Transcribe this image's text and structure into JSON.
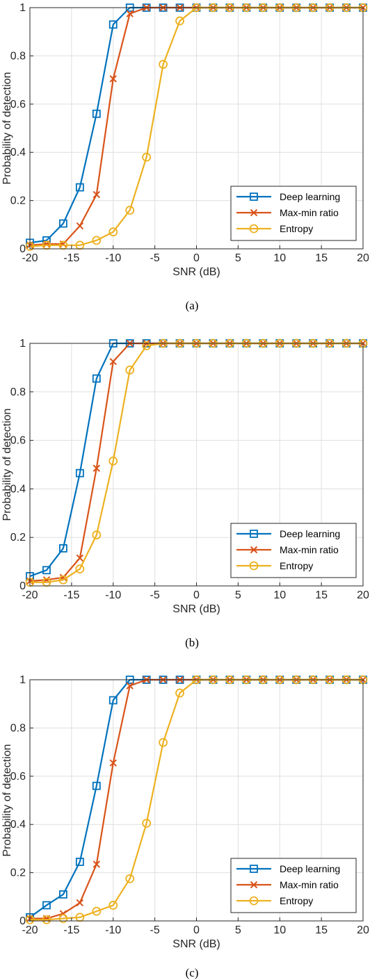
{
  "chart_data": [
    {
      "type": "line",
      "caption": "(a)",
      "xlabel": "SNR (dB)",
      "ylabel": "Probability of detection",
      "xlim": [
        -20,
        20
      ],
      "ylim": [
        0,
        1
      ],
      "grid": true,
      "legend_position": "bottom-right",
      "xticks": [
        -20,
        -15,
        -10,
        -5,
        0,
        5,
        10,
        15,
        20
      ],
      "xtick_labels": [
        "-20",
        "-15",
        "-10",
        "-5",
        "0",
        "5",
        "10",
        "15",
        "20"
      ],
      "yticks": [
        0,
        0.2,
        0.4,
        0.6,
        0.8,
        1
      ],
      "ytick_labels": [
        "0",
        "0.2",
        "0.4",
        "0.6",
        "0.8",
        "1"
      ],
      "x": [
        -20,
        -18,
        -16,
        -14,
        -12,
        -10,
        -8,
        -6,
        -4,
        -2,
        0,
        2,
        4,
        6,
        8,
        10,
        12,
        14,
        16,
        18,
        20
      ],
      "series": [
        {
          "name": "Deep learning",
          "marker": "square",
          "color": "#0072BD",
          "values": [
            0.025,
            0.035,
            0.105,
            0.255,
            0.56,
            0.93,
            1.0,
            1.0,
            1.0,
            1.0,
            1.0,
            1.0,
            1.0,
            1.0,
            1.0,
            1.0,
            1.0,
            1.0,
            1.0,
            1.0,
            1.0
          ]
        },
        {
          "name": "Max-min ratio",
          "marker": "x",
          "color": "#D95319",
          "values": [
            0.015,
            0.02,
            0.02,
            0.095,
            0.225,
            0.705,
            0.975,
            1.0,
            1.0,
            1.0,
            1.0,
            1.0,
            1.0,
            1.0,
            1.0,
            1.0,
            1.0,
            1.0,
            1.0,
            1.0,
            1.0
          ]
        },
        {
          "name": "Entropy",
          "marker": "circle",
          "color": "#EDB120",
          "values": [
            0.01,
            0.015,
            0.015,
            0.015,
            0.035,
            0.07,
            0.16,
            0.38,
            0.765,
            0.945,
            1.0,
            1.0,
            1.0,
            1.0,
            1.0,
            1.0,
            1.0,
            1.0,
            1.0,
            1.0,
            1.0
          ]
        }
      ]
    },
    {
      "type": "line",
      "caption": "(b)",
      "xlabel": "SNR (dB)",
      "ylabel": "Probability of detection",
      "xlim": [
        -20,
        20
      ],
      "ylim": [
        0,
        1
      ],
      "grid": true,
      "legend_position": "bottom-right",
      "xticks": [
        -20,
        -15,
        -10,
        -5,
        0,
        5,
        10,
        15,
        20
      ],
      "xtick_labels": [
        "-20",
        "-15",
        "-10",
        "-5",
        "0",
        "5",
        "10",
        "15",
        "20"
      ],
      "yticks": [
        0,
        0.2,
        0.4,
        0.6,
        0.8,
        1
      ],
      "ytick_labels": [
        "0",
        "0.2",
        "0.4",
        "0.6",
        "0.8",
        "1"
      ],
      "x": [
        -20,
        -18,
        -16,
        -14,
        -12,
        -10,
        -8,
        -6,
        -4,
        -2,
        0,
        2,
        4,
        6,
        8,
        10,
        12,
        14,
        16,
        18,
        20
      ],
      "series": [
        {
          "name": "Deep learning",
          "marker": "square",
          "color": "#0072BD",
          "values": [
            0.04,
            0.065,
            0.155,
            0.465,
            0.855,
            1.0,
            1.0,
            1.0,
            1.0,
            1.0,
            1.0,
            1.0,
            1.0,
            1.0,
            1.0,
            1.0,
            1.0,
            1.0,
            1.0,
            1.0,
            1.0
          ]
        },
        {
          "name": "Max-min ratio",
          "marker": "x",
          "color": "#D95319",
          "values": [
            0.02,
            0.025,
            0.035,
            0.115,
            0.485,
            0.925,
            1.0,
            1.0,
            1.0,
            1.0,
            1.0,
            1.0,
            1.0,
            1.0,
            1.0,
            1.0,
            1.0,
            1.0,
            1.0,
            1.0,
            1.0
          ]
        },
        {
          "name": "Entropy",
          "marker": "circle",
          "color": "#EDB120",
          "values": [
            0.015,
            0.015,
            0.025,
            0.07,
            0.21,
            0.515,
            0.89,
            0.99,
            1.0,
            1.0,
            1.0,
            1.0,
            1.0,
            1.0,
            1.0,
            1.0,
            1.0,
            1.0,
            1.0,
            1.0,
            1.0
          ]
        }
      ]
    },
    {
      "type": "line",
      "caption": "(c)",
      "xlabel": "SNR (dB)",
      "ylabel": "Probability of detection",
      "xlim": [
        -20,
        20
      ],
      "ylim": [
        0,
        1
      ],
      "grid": true,
      "legend_position": "bottom-right",
      "xticks": [
        -20,
        -15,
        -10,
        -5,
        0,
        5,
        10,
        15,
        20
      ],
      "xtick_labels": [
        "-20",
        "-15",
        "-10",
        "-5",
        "0",
        "5",
        "10",
        "15",
        "20"
      ],
      "yticks": [
        0,
        0.2,
        0.4,
        0.6,
        0.8,
        1
      ],
      "ytick_labels": [
        "0",
        "0.2",
        "0.4",
        "0.6",
        "0.8",
        "1"
      ],
      "x": [
        -20,
        -18,
        -16,
        -14,
        -12,
        -10,
        -8,
        -6,
        -4,
        -2,
        0,
        2,
        4,
        6,
        8,
        10,
        12,
        14,
        16,
        18,
        20
      ],
      "series": [
        {
          "name": "Deep learning",
          "marker": "square",
          "color": "#0072BD",
          "values": [
            0.015,
            0.065,
            0.11,
            0.245,
            0.56,
            0.915,
            1.0,
            1.0,
            1.0,
            1.0,
            1.0,
            1.0,
            1.0,
            1.0,
            1.0,
            1.0,
            1.0,
            1.0,
            1.0,
            1.0,
            1.0
          ]
        },
        {
          "name": "Max-min ratio",
          "marker": "x",
          "color": "#D95319",
          "values": [
            0.01,
            0.01,
            0.03,
            0.075,
            0.235,
            0.655,
            0.975,
            1.0,
            1.0,
            1.0,
            1.0,
            1.0,
            1.0,
            1.0,
            1.0,
            1.0,
            1.0,
            1.0,
            1.0,
            1.0,
            1.0
          ]
        },
        {
          "name": "Entropy",
          "marker": "circle",
          "color": "#EDB120",
          "values": [
            0.005,
            0.005,
            0.01,
            0.015,
            0.04,
            0.065,
            0.175,
            0.405,
            0.74,
            0.945,
            1.0,
            1.0,
            1.0,
            1.0,
            1.0,
            1.0,
            1.0,
            1.0,
            1.0,
            1.0,
            1.0
          ]
        }
      ]
    }
  ]
}
